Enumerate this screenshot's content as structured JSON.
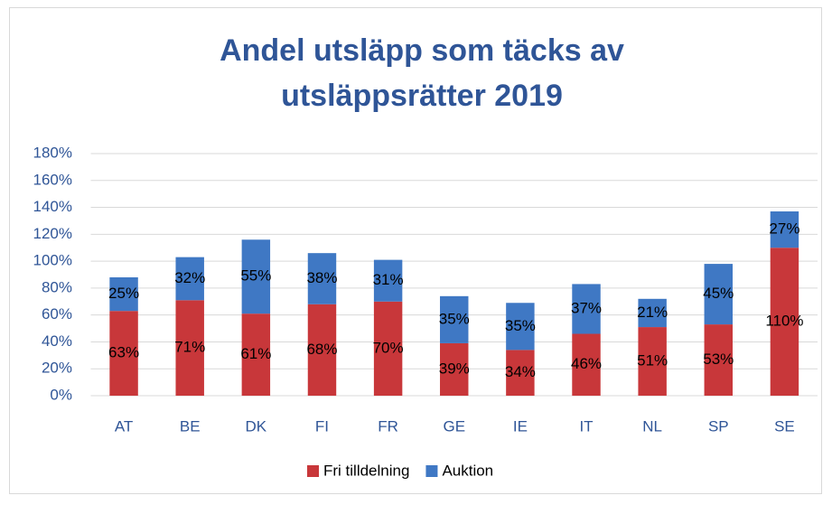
{
  "chart_data": {
    "type": "stacked_bar",
    "title": [
      "Andel utsläpp som täcks av",
      "utsläppsrätter 2019"
    ],
    "categories": [
      "AT",
      "BE",
      "DK",
      "FI",
      "FR",
      "GE",
      "IE",
      "IT",
      "NL",
      "SP",
      "SE"
    ],
    "series": [
      {
        "name": "Fri tilldelning",
        "color": "#c8373a",
        "values": [
          63,
          71,
          61,
          68,
          70,
          39,
          34,
          46,
          51,
          53,
          110
        ],
        "value_labels": [
          "63%",
          "71%",
          "61%",
          "68%",
          "70%",
          "39%",
          "34%",
          "46%",
          "51%",
          "53%",
          "110%"
        ]
      },
      {
        "name": "Auktion",
        "color": "#3f78c4",
        "values": [
          25,
          32,
          55,
          38,
          31,
          35,
          35,
          37,
          21,
          45,
          27
        ],
        "value_labels": [
          "25%",
          "32%",
          "55%",
          "38%",
          "31%",
          "35%",
          "35%",
          "37%",
          "21%",
          "45%",
          "27%"
        ]
      }
    ],
    "ylim": [
      0,
      180
    ],
    "yticks": [
      {
        "value": 0,
        "label": "0%"
      },
      {
        "value": 20,
        "label": "20%"
      },
      {
        "value": 40,
        "label": "40%"
      },
      {
        "value": 60,
        "label": "60%"
      },
      {
        "value": 80,
        "label": "80%"
      },
      {
        "value": 100,
        "label": "100%"
      },
      {
        "value": 120,
        "label": "120%"
      },
      {
        "value": 140,
        "label": "140%"
      },
      {
        "value": 160,
        "label": "160%"
      },
      {
        "value": 180,
        "label": "180%"
      }
    ],
    "grid": true,
    "legend": "bottom"
  }
}
